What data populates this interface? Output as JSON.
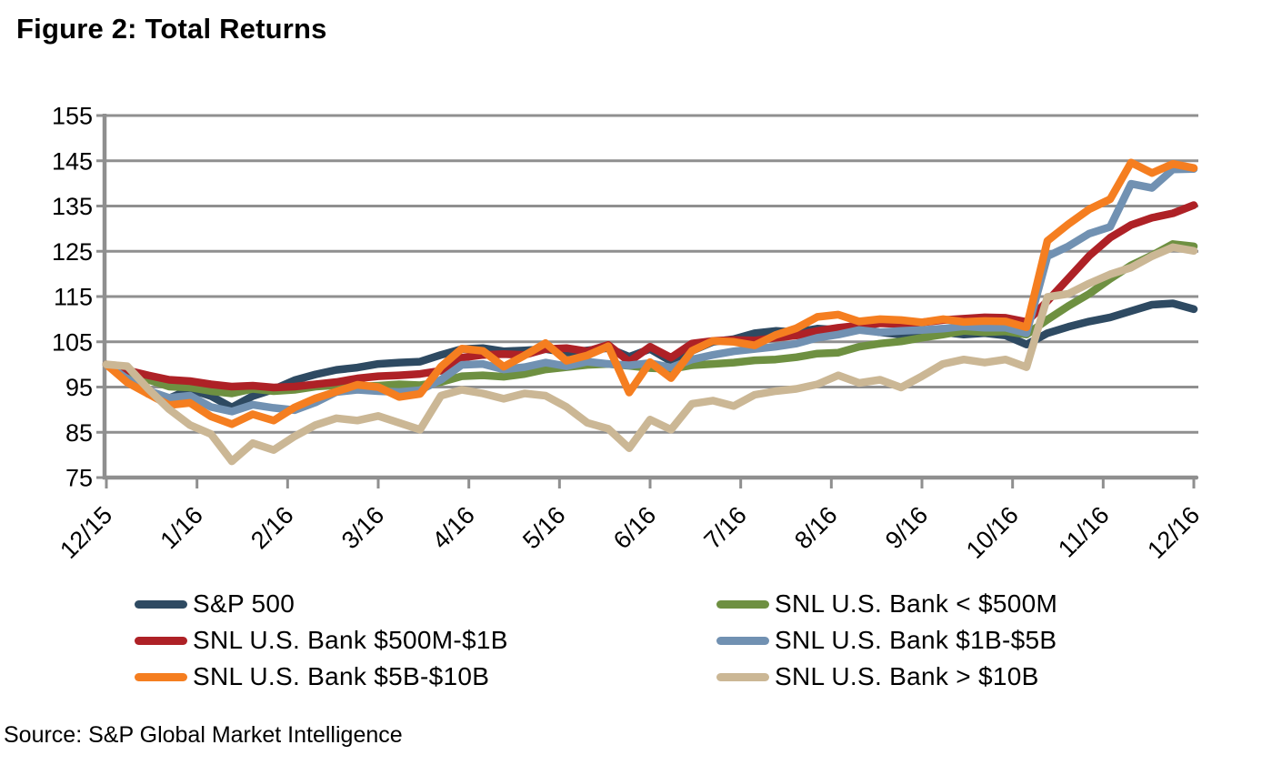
{
  "title": "Figure 2: Total Returns",
  "source": "Source: S&P Global Market Intelligence",
  "colors": {
    "grid": "#8F8F8F",
    "axis": "#8F8F8F",
    "text": "#000000",
    "background": "#FFFFFF"
  },
  "chart_data": {
    "type": "line",
    "title": "Figure 2: Total Returns",
    "xlabel": "",
    "ylabel": "",
    "ylim": [
      75,
      155
    ],
    "y_ticks": [
      75,
      85,
      95,
      105,
      115,
      125,
      135,
      145,
      155
    ],
    "x_tick_labels": [
      "12/15",
      "1/16",
      "2/16",
      "3/16",
      "4/16",
      "5/16",
      "6/16",
      "7/16",
      "8/16",
      "9/16",
      "10/16",
      "11/16",
      "12/16"
    ],
    "grid": "horizontal",
    "legend_position": "bottom",
    "sampling": "weekly points from 12/15 through 12/16, indexed to 100 at 12/15",
    "series": [
      {
        "name": "S&P 500",
        "color": "#2E4A62",
        "values": [
          100.0,
          97.5,
          93.5,
          92.5,
          94.5,
          93.0,
          90.5,
          93.0,
          94.5,
          96.5,
          97.8,
          98.8,
          99.3,
          100.1,
          100.4,
          100.6,
          102.1,
          103.4,
          103.6,
          102.9,
          103.1,
          103.4,
          102.6,
          103.1,
          103.6,
          101.7,
          103.4,
          100.7,
          103.0,
          105.0,
          105.6,
          106.9,
          107.4,
          107.1,
          107.9,
          107.6,
          107.9,
          107.1,
          106.6,
          106.9,
          107.1,
          106.6,
          106.9,
          106.4,
          104.4,
          106.9,
          108.3,
          109.5,
          110.4,
          111.8,
          113.2,
          113.5,
          112.2
        ]
      },
      {
        "name": "SNL U.S. Bank < $500M",
        "color": "#6E9041",
        "values": [
          100.0,
          98.1,
          96.6,
          95.1,
          94.9,
          94.1,
          93.6,
          94.6,
          94.1,
          94.4,
          95.1,
          95.4,
          95.1,
          95.3,
          95.6,
          95.4,
          96.1,
          97.4,
          97.6,
          97.3,
          97.9,
          98.9,
          99.4,
          99.9,
          100.1,
          99.7,
          99.2,
          99.0,
          99.8,
          100.1,
          100.4,
          100.9,
          101.1,
          101.6,
          102.4,
          102.6,
          103.9,
          104.6,
          105.1,
          105.9,
          106.6,
          107.4,
          107.1,
          107.3,
          106.6,
          109.9,
          112.9,
          115.6,
          118.9,
          121.9,
          124.1,
          126.6,
          126.1
        ]
      },
      {
        "name": "SNL U.S. Bank $500M-$1B",
        "color": "#AE2126",
        "values": [
          100.0,
          98.7,
          97.6,
          96.6,
          96.3,
          95.6,
          95.1,
          95.3,
          94.9,
          95.1,
          95.6,
          96.1,
          96.9,
          97.4,
          97.6,
          97.9,
          98.6,
          101.5,
          102.1,
          102.3,
          102.1,
          103.4,
          103.6,
          102.9,
          104.3,
          100.6,
          103.9,
          101.5,
          104.6,
          105.2,
          105.4,
          105.3,
          105.9,
          106.4,
          107.4,
          108.1,
          108.6,
          109.1,
          108.9,
          109.3,
          109.8,
          110.1,
          110.4,
          110.3,
          109.4,
          114.0,
          119.0,
          124.0,
          128.0,
          130.8,
          132.4,
          133.4,
          135.2
        ]
      },
      {
        "name": "SNL U.S. Bank $1B-$5B",
        "color": "#7191B2",
        "values": [
          100.0,
          96.8,
          94.2,
          92.6,
          93.1,
          90.6,
          89.6,
          91.1,
          90.4,
          89.9,
          91.6,
          93.9,
          94.4,
          94.1,
          93.9,
          94.3,
          96.6,
          99.9,
          100.1,
          98.9,
          99.4,
          100.4,
          99.6,
          100.6,
          100.1,
          99.8,
          100.3,
          99.3,
          101.1,
          102.1,
          102.9,
          103.4,
          103.9,
          104.6,
          105.9,
          106.6,
          107.6,
          107.1,
          107.4,
          107.6,
          107.9,
          108.4,
          108.1,
          108.1,
          106.9,
          123.9,
          126.1,
          128.9,
          130.4,
          139.9,
          139.0,
          143.1,
          143.2
        ]
      },
      {
        "name": "SNL U.S. Bank $5B-$10B",
        "color": "#F57E20",
        "values": [
          100.0,
          96.0,
          93.5,
          91.0,
          91.5,
          88.5,
          86.8,
          89.0,
          87.6,
          90.5,
          92.5,
          94.0,
          95.5,
          95.0,
          92.8,
          93.5,
          99.5,
          103.5,
          103.0,
          99.5,
          102.0,
          104.7,
          100.8,
          102.0,
          104.0,
          93.8,
          100.5,
          97.0,
          103.0,
          105.2,
          105.0,
          104.2,
          106.5,
          108.0,
          110.5,
          111.0,
          109.5,
          110.0,
          109.8,
          109.3,
          110.0,
          109.4,
          109.6,
          109.5,
          108.2,
          127.3,
          131.0,
          134.3,
          136.5,
          144.6,
          142.3,
          144.3,
          143.4
        ]
      },
      {
        "name": "SNL U.S. Bank > $10B",
        "color": "#CBB795",
        "values": [
          100.0,
          99.6,
          94.6,
          90.1,
          86.6,
          84.6,
          78.6,
          82.6,
          81.1,
          84.1,
          86.6,
          88.1,
          87.6,
          88.6,
          87.1,
          85.6,
          93.1,
          94.4,
          93.6,
          92.4,
          93.6,
          93.1,
          90.6,
          87.1,
          85.8,
          81.5,
          87.8,
          85.6,
          91.3,
          92.0,
          90.8,
          93.3,
          94.1,
          94.6,
          95.6,
          97.6,
          95.9,
          96.6,
          94.9,
          97.4,
          100.1,
          101.1,
          100.4,
          101.1,
          99.4,
          114.9,
          115.6,
          117.9,
          119.9,
          121.4,
          123.9,
          125.9,
          125.1
        ]
      }
    ]
  }
}
